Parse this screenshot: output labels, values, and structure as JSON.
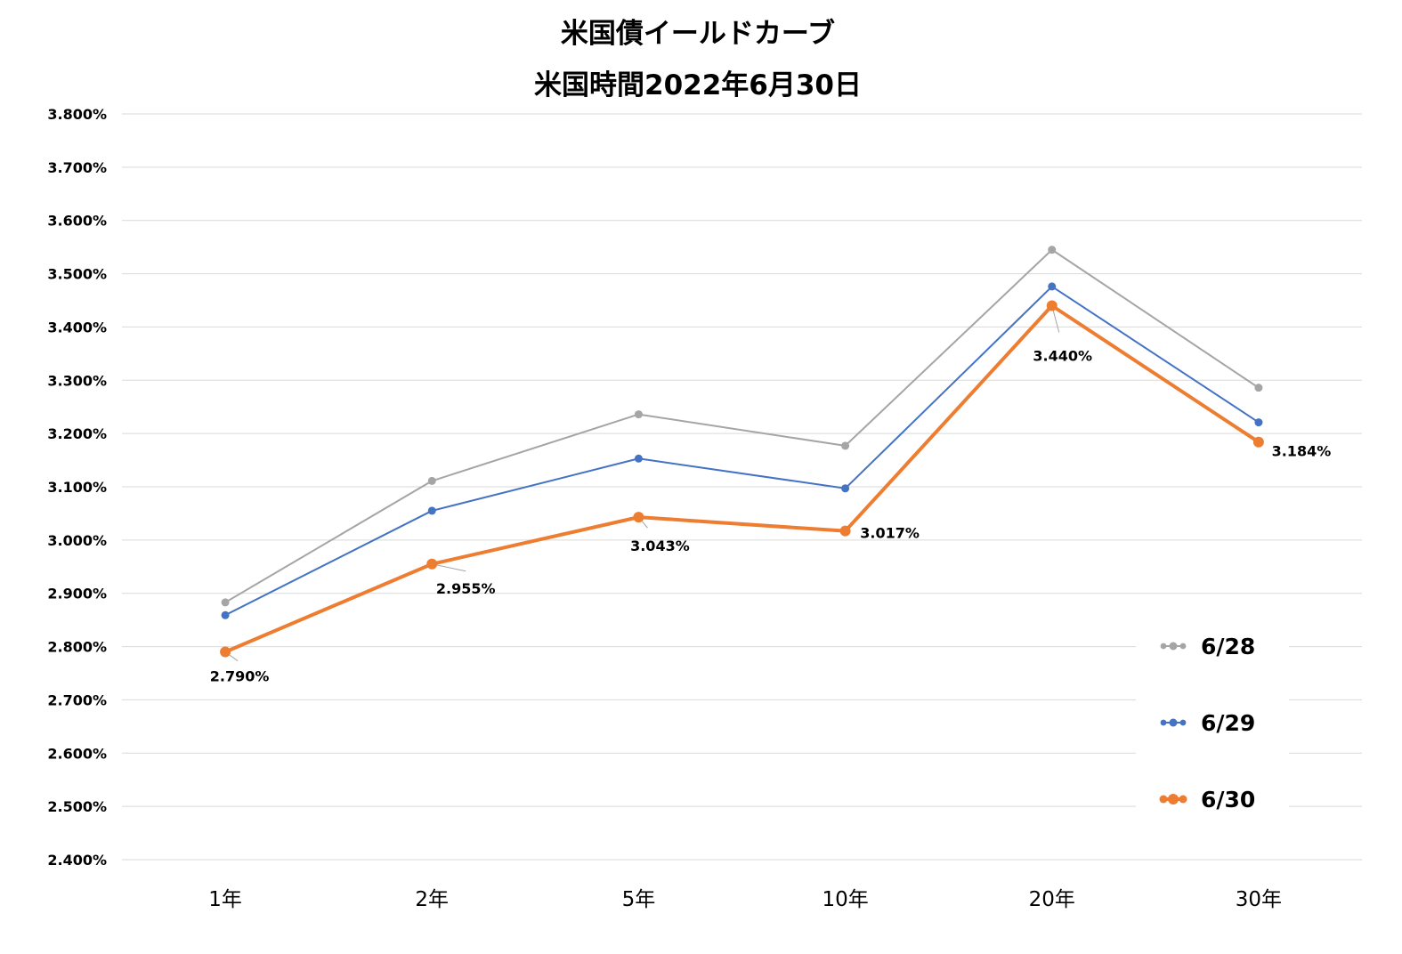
{
  "chart_data": {
    "type": "line",
    "title": "米国債イールドカーブ",
    "subtitle": "米国時間2022年6月30日",
    "categories": [
      "1年",
      "2年",
      "5年",
      "10年",
      "20年",
      "30年"
    ],
    "y_tick_labels": [
      "3.800%",
      "3.700%",
      "3.600%",
      "3.500%",
      "3.400%",
      "3.300%",
      "3.200%",
      "3.100%",
      "3.000%",
      "2.900%",
      "2.800%",
      "2.700%",
      "2.600%",
      "2.500%",
      "2.400%"
    ],
    "ylim": [
      2.4,
      3.8
    ],
    "grid": true,
    "legend_position": "bottom-right",
    "series": [
      {
        "name": "6/28",
        "color": "#a5a5a5",
        "values": [
          2.883,
          3.111,
          3.236,
          3.177,
          3.545,
          3.286
        ]
      },
      {
        "name": "6/29",
        "color": "#4472c4",
        "values": [
          2.859,
          3.055,
          3.153,
          3.097,
          3.476,
          3.221
        ]
      },
      {
        "name": "6/30",
        "color": "#ed7d31",
        "values": [
          2.79,
          2.955,
          3.043,
          3.017,
          3.44,
          3.184
        ],
        "data_labels": [
          "2.790%",
          "2.955%",
          "3.043%",
          "3.017%",
          "3.440%",
          "3.184%"
        ]
      }
    ]
  }
}
